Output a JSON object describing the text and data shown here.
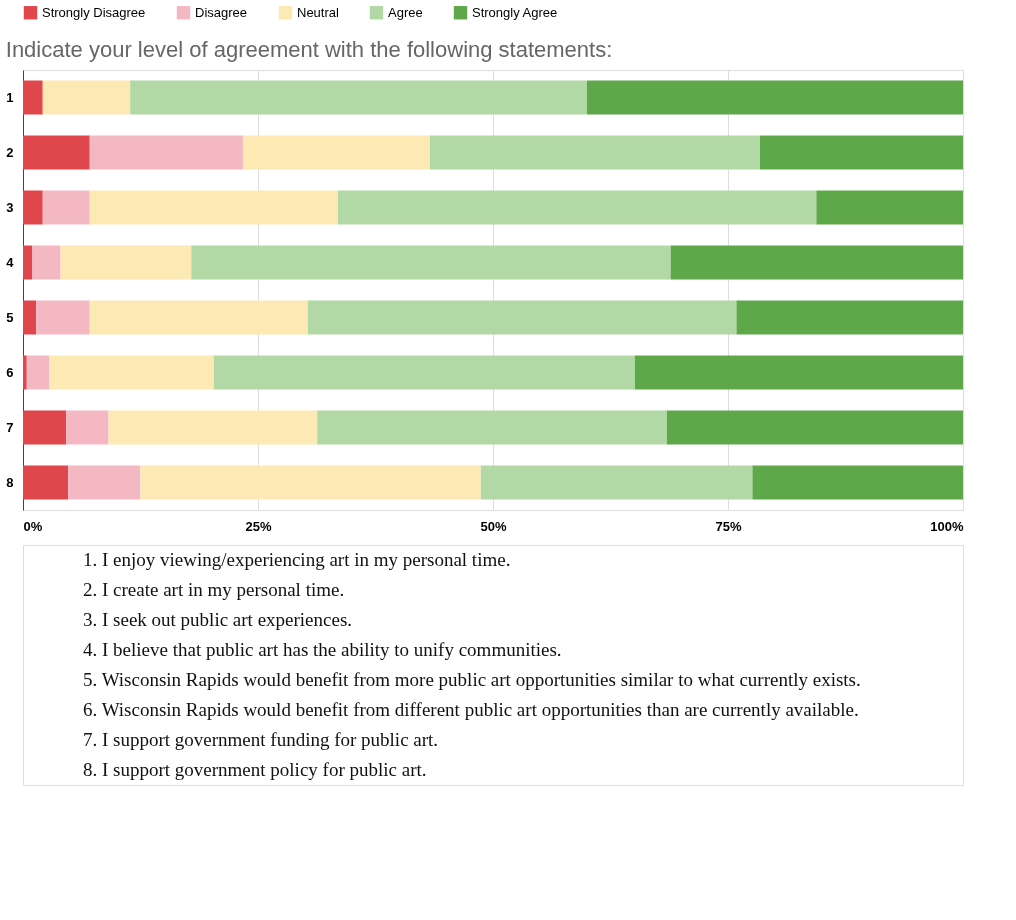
{
  "chart_data": {
    "type": "bar",
    "orientation": "horizontal",
    "stacked": true,
    "title": "Indicate your level of agreement with the following statements:",
    "categories": [
      "1",
      "2",
      "3",
      "4",
      "5",
      "6",
      "7",
      "8"
    ],
    "series": [
      {
        "name": "Strongly Disagree",
        "color": "#e0474c",
        "values": [
          2.1,
          7.1,
          2.1,
          1.0,
          1.4,
          0.4,
          4.6,
          4.8
        ]
      },
      {
        "name": "Disagree",
        "color": "#f4b8c3",
        "values": [
          0,
          16.3,
          5.0,
          3.0,
          5.7,
          2.4,
          4.5,
          7.7
        ]
      },
      {
        "name": "Neutral",
        "color": "#fde9b3",
        "values": [
          9.3,
          19.9,
          26.4,
          13.9,
          23.2,
          17.5,
          22.2,
          36.2
        ]
      },
      {
        "name": "Agree",
        "color": "#b2d9a5",
        "values": [
          48.6,
          35.1,
          50.9,
          51.0,
          45.6,
          44.8,
          37.2,
          28.9
        ]
      },
      {
        "name": "Strongly Agree",
        "color": "#5fa84a",
        "values": [
          40.0,
          21.6,
          15.6,
          31.1,
          24.1,
          34.9,
          31.5,
          22.4
        ]
      }
    ],
    "xlim": [
      0,
      100
    ],
    "xticks": [
      {
        "value": 0,
        "label": "0%"
      },
      {
        "value": 25,
        "label": "25%"
      },
      {
        "value": 50,
        "label": "50%"
      },
      {
        "value": 75,
        "label": "75%"
      },
      {
        "value": 100,
        "label": "100%"
      }
    ],
    "grid": "x",
    "legend": "top",
    "annotations": [
      "1. I enjoy viewing/experiencing art in my personal time.",
      "2. I create art in my personal time.",
      "3. I seek out public art experiences.",
      "4. I believe that public art has the ability to unify communities.",
      "5. Wisconsin Rapids would benefit from more public art opportunities similar to what currently exists.",
      "6. Wisconsin Rapids would benefit from different public art opportunities than are currently available.",
      "7. I support government funding for public art.",
      "8. I support government policy for public art."
    ]
  }
}
